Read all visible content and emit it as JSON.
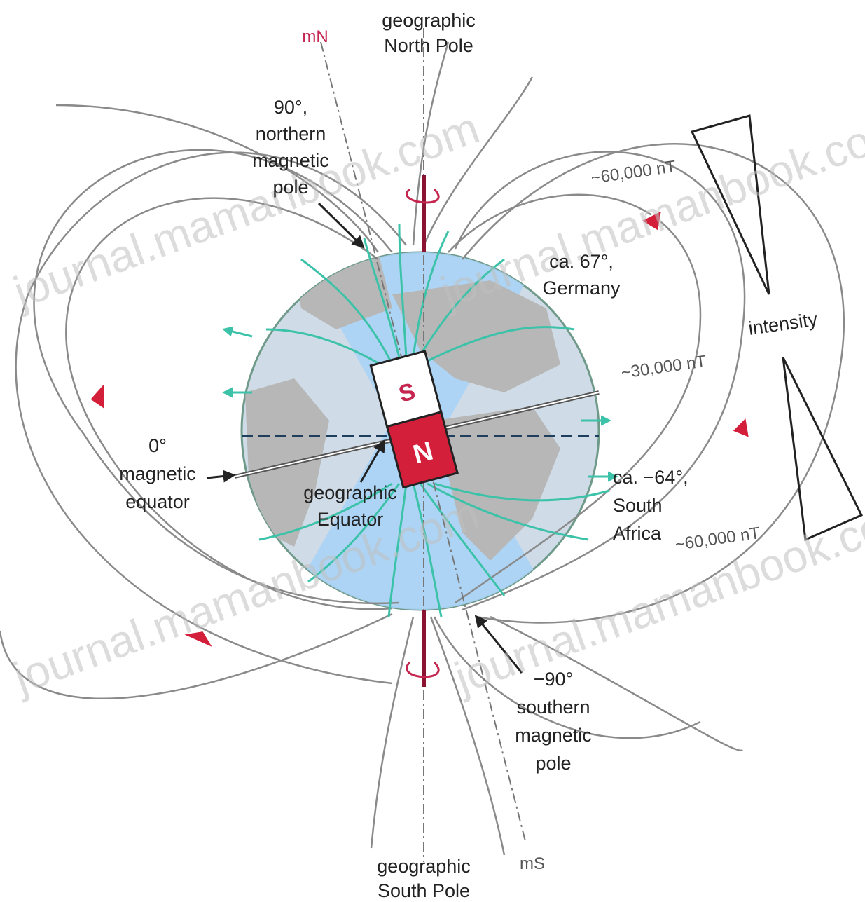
{
  "labels": {
    "mN": "mN",
    "geographic_north_line1": "geographic",
    "geographic_north_line2": "North Pole",
    "northern_pole_line1": "90°,",
    "northern_pole_line2": "northern",
    "northern_pole_line3": "magnetic",
    "northern_pole_line4": "pole",
    "germany_line1": "ca. 67°,",
    "germany_line2": "Germany",
    "intensity": "intensity",
    "nt_60000_top": "~60,000 nT",
    "nt_30000": "~30,000 nT",
    "nt_60000_bottom": "~60,000 nT",
    "magnetic_equator_line1": "0°",
    "magnetic_equator_line2": "magnetic",
    "magnetic_equator_line3": "equator",
    "geographic_equator_line1": "geographic",
    "geographic_equator_line2": "Equator",
    "south_africa_line1": "ca. −64°,",
    "south_africa_line2": "South",
    "south_africa_line3": "Africa",
    "southern_pole_line1": "−90°",
    "southern_pole_line2": "southern",
    "southern_pole_line3": "magnetic",
    "southern_pole_line4": "pole",
    "geographic_south_line1": "geographic",
    "geographic_south_line2": "South Pole",
    "mS": "mS",
    "magnet_s": "S",
    "magnet_n": "N"
  },
  "watermark": "journal.mamanbook.com",
  "colors": {
    "globe_fill": "#c8d9e8",
    "land": "#b7b7b7",
    "field_blue": "#a9d3f5",
    "teal": "#3cc2a8",
    "magnet_red": "#d41f3a",
    "pole_red": "#c4264f"
  }
}
